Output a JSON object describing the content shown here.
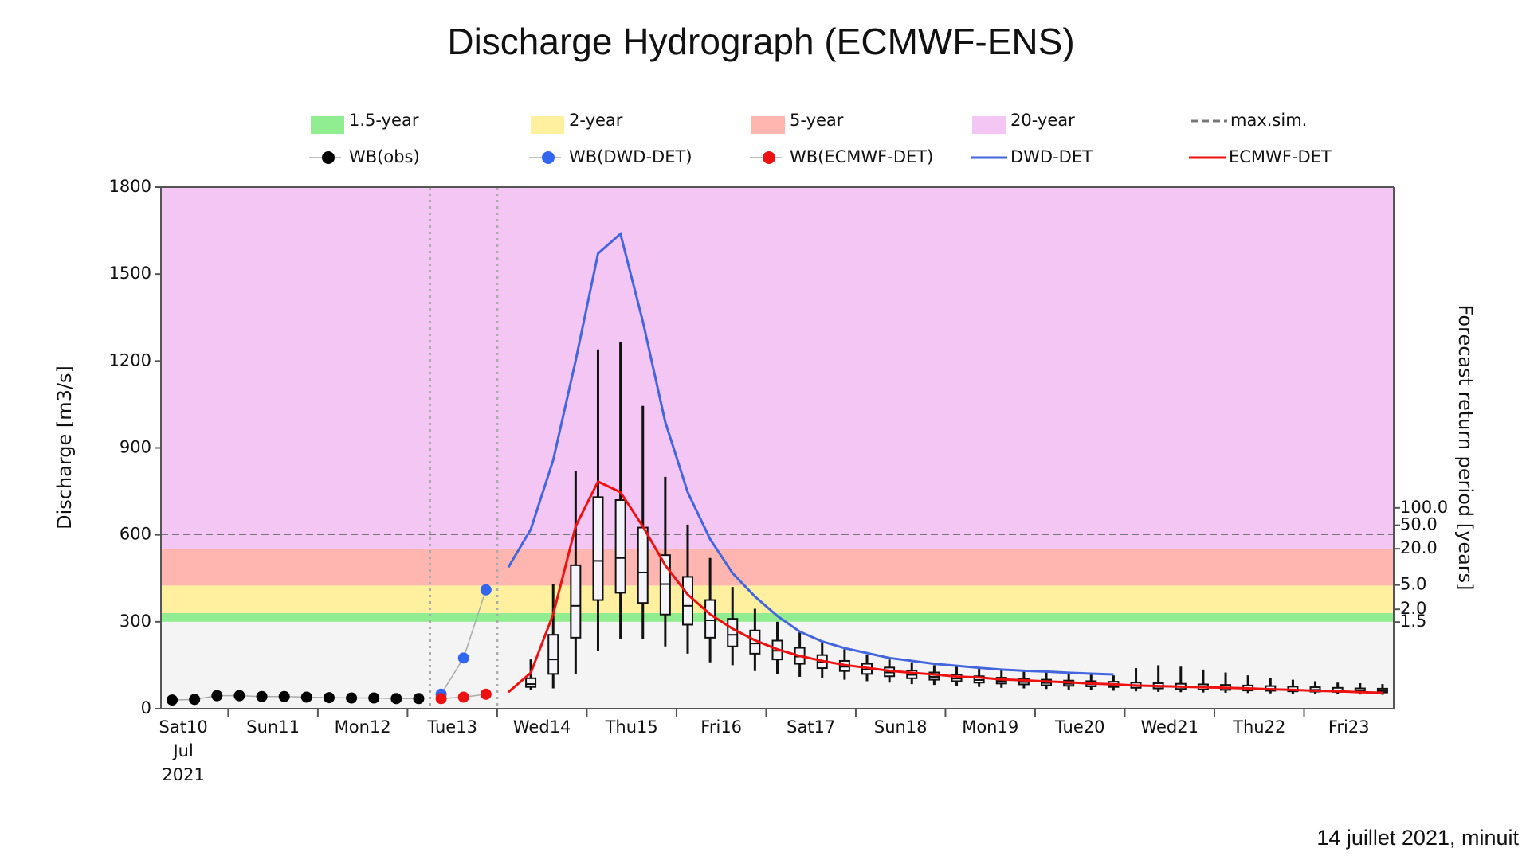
{
  "chart_data": {
    "type": "hydrograph",
    "title": "Discharge Hydrograph (ECMWF-ENS)",
    "footer": "14 juillet 2021, minuit",
    "ylabel": "Discharge [m3/s]",
    "ylim": [
      0,
      1800
    ],
    "yticks": [
      0,
      300,
      600,
      900,
      1200,
      1500,
      1800
    ],
    "xlim": [
      0.25,
      14
    ],
    "xticks": [
      1,
      2,
      3,
      4,
      5,
      6,
      7,
      8,
      9,
      10,
      11,
      12,
      13
    ],
    "xlabels": [
      {
        "value": 0.5,
        "label": "Sat10"
      },
      {
        "value": 1.5,
        "label": "Sun11"
      },
      {
        "value": 2.5,
        "label": "Mon12"
      },
      {
        "value": 3.5,
        "label": "Tue13"
      },
      {
        "value": 4.5,
        "label": "Wed14"
      },
      {
        "value": 5.5,
        "label": "Thu15"
      },
      {
        "value": 6.5,
        "label": "Fri16"
      },
      {
        "value": 7.5,
        "label": "Sat17"
      },
      {
        "value": 8.5,
        "label": "Sun18"
      },
      {
        "value": 9.5,
        "label": "Mon19"
      },
      {
        "value": 10.5,
        "label": "Tue20"
      },
      {
        "value": 11.5,
        "label": "Wed21"
      },
      {
        "value": 12.5,
        "label": "Thu22"
      },
      {
        "value": 13.5,
        "label": "Fri23"
      }
    ],
    "xlabel_sub": [
      "Jul",
      "2021"
    ],
    "vlines": [
      3.25,
      4.0
    ],
    "below_color": "#f4f4f4",
    "bands": [
      {
        "name": "1.5-year",
        "from": 300,
        "to": 330,
        "color": "#90ee90"
      },
      {
        "name": "2-year",
        "from": 330,
        "to": 425,
        "color": "#fff0a0"
      },
      {
        "name": "5-year",
        "from": 425,
        "to": 550,
        "color": "#ffb6b0"
      },
      {
        "name": "20-year",
        "from": 550,
        "to": 1800,
        "color": "#f4c6f4"
      }
    ],
    "max_sim": {
      "name": "max.sim.",
      "value": 602,
      "color": "#777777"
    },
    "return_period_axis": {
      "label": "Forecast return period [years]",
      "ticks": [
        {
          "discharge": 693,
          "label": "100.0"
        },
        {
          "discharge": 633,
          "label": "50.0"
        },
        {
          "discharge": 552,
          "label": "20.0"
        },
        {
          "discharge": 427,
          "label": "5.0"
        },
        {
          "discharge": 343,
          "label": "2.0"
        },
        {
          "discharge": 299,
          "label": "1.5"
        }
      ]
    },
    "series": [
      {
        "name": "WB(obs)",
        "color": "#000000",
        "style": "points",
        "x": [
          0.375,
          0.625,
          0.875,
          1.125,
          1.375,
          1.625,
          1.875,
          2.125,
          2.375,
          2.625,
          2.875,
          3.125
        ],
        "values": [
          30,
          32,
          45,
          45,
          42,
          42,
          40,
          38,
          37,
          37,
          35,
          35
        ]
      },
      {
        "name": "WB(DWD-DET)",
        "color": "#3366ee",
        "style": "points",
        "x": [
          3.375,
          3.625,
          3.875
        ],
        "values": [
          50,
          175,
          410
        ]
      },
      {
        "name": "WB(ECMWF-DET)",
        "color": "#ee1111",
        "style": "points",
        "x": [
          3.375,
          3.625,
          3.875
        ],
        "values": [
          35,
          40,
          50
        ]
      },
      {
        "name": "DWD-DET",
        "color": "#4466dd",
        "style": "line",
        "x": [
          4.125,
          4.375,
          4.625,
          4.875,
          5.125,
          5.375,
          5.625,
          5.875,
          6.125,
          6.375,
          6.625,
          6.875,
          7.125,
          7.375,
          7.625,
          7.875,
          8.125,
          8.375,
          8.625,
          8.875,
          9.125,
          9.375,
          9.625,
          9.875,
          10.125,
          10.375,
          10.625,
          10.875
        ],
        "values": [
          488,
          619,
          858,
          1201,
          1571,
          1639,
          1336,
          989,
          747,
          585,
          468,
          387,
          320,
          266,
          232,
          209,
          192,
          175,
          165,
          155,
          148,
          141,
          135,
          131,
          128,
          124,
          121,
          118
        ]
      },
      {
        "name": "ECMWF-DET",
        "color": "#ee1111",
        "style": "line",
        "x": [
          4.125,
          4.375,
          4.625,
          4.875,
          5.125,
          5.375,
          5.625,
          5.875,
          6.125,
          6.375,
          6.625,
          6.875,
          7.125,
          7.375,
          7.625,
          7.875,
          8.125,
          8.375,
          8.625,
          8.875,
          9.125,
          9.375,
          9.625,
          9.875,
          10.125,
          10.375,
          10.625,
          10.875,
          11.125,
          11.375,
          11.625,
          11.875,
          12.125,
          12.375,
          12.625,
          12.875,
          13.125,
          13.375,
          13.625,
          13.875
        ],
        "values": [
          57,
          124,
          326,
          629,
          784,
          747,
          629,
          495,
          394,
          326,
          276,
          236,
          205,
          182,
          165,
          151,
          141,
          131,
          124,
          118,
          111,
          108,
          101,
          98,
          94,
          91,
          87,
          84,
          80,
          78,
          76,
          74,
          72,
          70,
          67,
          65,
          62,
          60,
          57,
          55
        ]
      }
    ],
    "boxes": {
      "x": [
        4.375,
        4.625,
        4.875,
        5.125,
        5.375,
        5.625,
        5.875,
        6.125,
        6.375,
        6.625,
        6.875,
        7.125,
        7.375,
        7.625,
        7.875,
        8.125,
        8.375,
        8.625,
        8.875,
        9.125,
        9.375,
        9.625,
        9.875,
        10.125,
        10.375,
        10.625,
        10.875,
        11.125,
        11.375,
        11.625,
        11.875,
        12.125,
        12.375,
        12.625,
        12.875,
        13.125,
        13.375,
        13.625,
        13.875
      ],
      "min": [
        65,
        70,
        120,
        200,
        240,
        240,
        215,
        190,
        160,
        150,
        130,
        120,
        110,
        105,
        100,
        95,
        90,
        85,
        82,
        78,
        75,
        72,
        70,
        68,
        66,
        64,
        62,
        60,
        58,
        57,
        56,
        55,
        54,
        53,
        52,
        51,
        50,
        49,
        48
      ],
      "q1": [
        75,
        120,
        245,
        375,
        400,
        365,
        325,
        290,
        245,
        215,
        190,
        170,
        155,
        140,
        130,
        120,
        112,
        105,
        100,
        95,
        90,
        87,
        84,
        81,
        79,
        77,
        75,
        72,
        70,
        68,
        66,
        65,
        63,
        62,
        60,
        59,
        58,
        57,
        56
      ],
      "median": [
        85,
        170,
        355,
        510,
        520,
        470,
        430,
        355,
        305,
        255,
        225,
        200,
        180,
        160,
        145,
        135,
        125,
        117,
        110,
        104,
        99,
        95,
        92,
        89,
        86,
        84,
        82,
        80,
        78,
        76,
        74,
        72,
        70,
        68,
        66,
        65,
        63,
        62,
        61
      ],
      "q3": [
        105,
        255,
        495,
        730,
        720,
        625,
        530,
        455,
        375,
        310,
        270,
        235,
        210,
        185,
        165,
        155,
        142,
        132,
        125,
        118,
        112,
        107,
        103,
        100,
        97,
        95,
        93,
        90,
        88,
        86,
        84,
        82,
        80,
        78,
        76,
        74,
        72,
        70,
        69
      ],
      "max": [
        170,
        430,
        820,
        1240,
        1265,
        1045,
        800,
        635,
        520,
        420,
        345,
        300,
        265,
        230,
        205,
        185,
        170,
        160,
        150,
        145,
        140,
        135,
        130,
        125,
        120,
        118,
        115,
        140,
        150,
        145,
        135,
        125,
        115,
        105,
        100,
        95,
        90,
        88,
        85
      ]
    }
  }
}
